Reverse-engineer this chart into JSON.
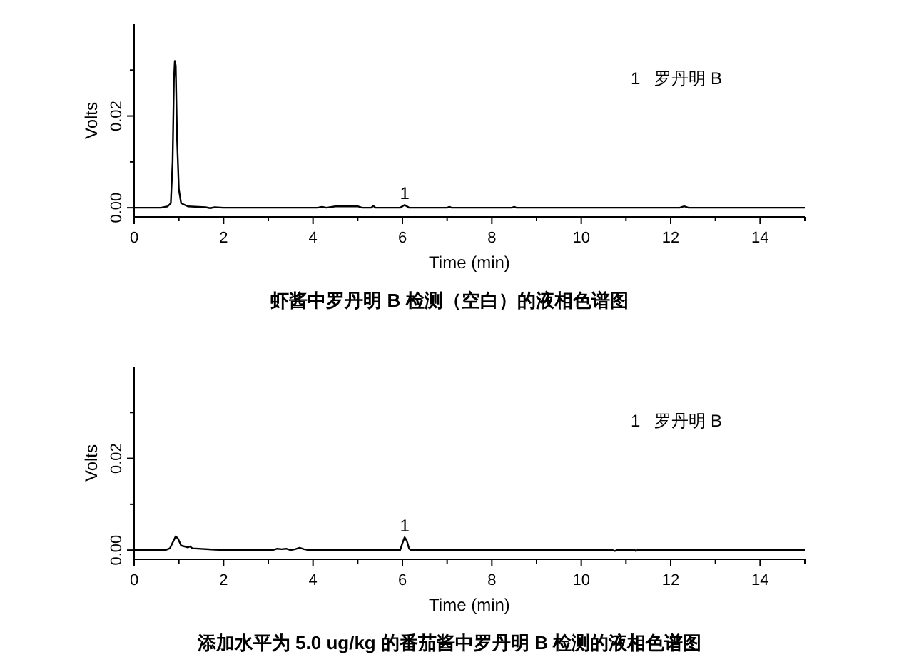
{
  "chart_data": [
    {
      "type": "line",
      "title": "虾酱中罗丹明 B 检测（空白）的液相色谱图",
      "xlabel": "Time (min)",
      "ylabel": "Volts",
      "xlim": [
        0,
        15
      ],
      "ylim": [
        -0.002,
        0.04
      ],
      "xticks": [
        0,
        {
          "value": 1,
          "label": null
        },
        2,
        {
          "value": 3,
          "label": null
        },
        4,
        {
          "value": 5,
          "label": null
        },
        6,
        {
          "value": 7,
          "label": null
        },
        8,
        {
          "value": 9,
          "label": null
        },
        10,
        {
          "value": 11,
          "label": null
        },
        12,
        {
          "value": 13,
          "label": null
        },
        14,
        {
          "value": 15,
          "label": null
        }
      ],
      "yticks": [
        {
          "value": 0,
          "label": "0.00"
        },
        {
          "value": 0.01,
          "label": null
        },
        {
          "value": 0.02,
          "label": "0.02"
        },
        {
          "value": 0.03,
          "label": null
        }
      ],
      "annotations": [
        {
          "text": "1",
          "x": 6.05,
          "y": 0.0006
        },
        "1   罗丹明 B"
      ],
      "series": [
        {
          "color": "#000000",
          "x": [
            0,
            0.6,
            0.75,
            0.82,
            0.86,
            0.89,
            0.91,
            0.93,
            0.96,
            1.0,
            1.05,
            1.2,
            1.6,
            1.7,
            1.8,
            2.0,
            4.1,
            4.2,
            4.3,
            4.5,
            5.0,
            5.1,
            5.3,
            5.35,
            5.4,
            5.95,
            6.05,
            6.15,
            7.0,
            7.05,
            7.1,
            8.45,
            8.5,
            8.55,
            12.2,
            12.3,
            12.4,
            15
          ],
          "values": [
            0,
            0,
            0.0003,
            0.001,
            0.01,
            0.028,
            0.032,
            0.031,
            0.015,
            0.004,
            0.001,
            0.0003,
            0.0001,
            -0.0001,
            0.0001,
            0,
            0,
            0.0002,
            0,
            0.0003,
            0.0003,
            0,
            0,
            0.0004,
            0,
            0,
            0.0006,
            0,
            0,
            0.0002,
            0,
            0,
            0.0002,
            0,
            0,
            0.0003,
            0,
            0
          ]
        }
      ]
    },
    {
      "type": "line",
      "title": "添加水平为 5.0 ug/kg 的番茄酱中罗丹明 B 检测的液相色谱图",
      "xlabel": "Time (min)",
      "ylabel": "Volts",
      "xlim": [
        0,
        15
      ],
      "ylim": [
        -0.002,
        0.04
      ],
      "xticks": [
        0,
        {
          "value": 1,
          "label": null
        },
        2,
        {
          "value": 3,
          "label": null
        },
        4,
        {
          "value": 5,
          "label": null
        },
        6,
        {
          "value": 7,
          "label": null
        },
        8,
        {
          "value": 9,
          "label": null
        },
        10,
        {
          "value": 11,
          "label": null
        },
        12,
        {
          "value": 13,
          "label": null
        },
        14,
        {
          "value": 15,
          "label": null
        }
      ],
      "yticks": [
        {
          "value": 0,
          "label": "0.00"
        },
        {
          "value": 0.01,
          "label": null
        },
        {
          "value": 0.02,
          "label": "0.02"
        },
        {
          "value": 0.03,
          "label": null
        }
      ],
      "annotations": [
        {
          "text": "1",
          "x": 6.05,
          "y": 0.0028
        },
        "1   罗丹明 B"
      ],
      "series": [
        {
          "color": "#000000",
          "x": [
            0,
            0.7,
            0.8,
            0.88,
            0.93,
            0.98,
            1.05,
            1.2,
            1.25,
            1.3,
            1.8,
            2,
            3.1,
            3.2,
            3.3,
            3.4,
            3.5,
            3.6,
            3.7,
            3.8,
            3.9,
            5.95,
            6.0,
            6.05,
            6.1,
            6.15,
            6.2,
            10.7,
            10.75,
            10.8,
            11.2,
            11.22,
            11.25,
            15
          ],
          "values": [
            0,
            0,
            0.0004,
            0.002,
            0.003,
            0.0025,
            0.001,
            0.0006,
            0.0008,
            0.0004,
            0.0001,
            0,
            0,
            0.0003,
            0.0002,
            0.0003,
            0,
            0.0002,
            0.0005,
            0.0002,
            0,
            0,
            0.0015,
            0.0028,
            0.002,
            0.0003,
            0,
            0,
            -0.0002,
            0,
            0,
            -0.0002,
            0,
            0
          ]
        }
      ]
    }
  ]
}
